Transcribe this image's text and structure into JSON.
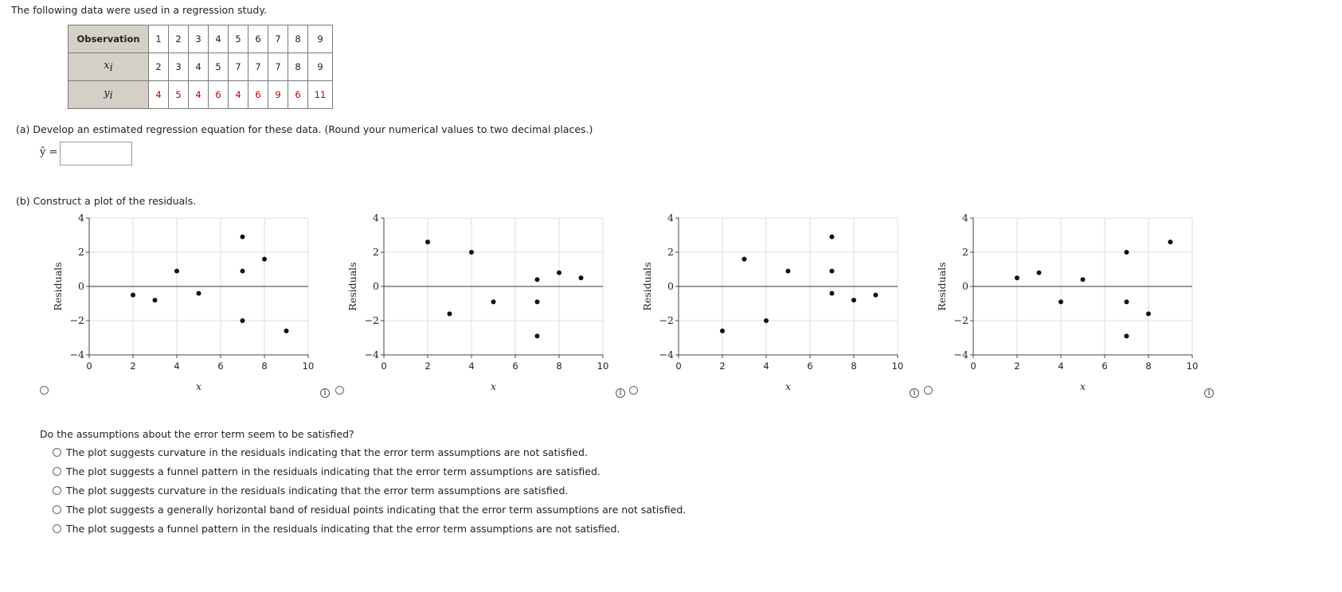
{
  "intro": "The following data were used in a regression study.",
  "table": {
    "header_label": "Observation",
    "x_label": "x",
    "x_sub": "i",
    "y_label": "y",
    "y_sub": "i",
    "observations": [
      "1",
      "2",
      "3",
      "4",
      "5",
      "6",
      "7",
      "8",
      "9"
    ],
    "x": [
      "2",
      "3",
      "4",
      "5",
      "7",
      "7",
      "7",
      "8",
      "9"
    ],
    "y": [
      "4",
      "5",
      "4",
      "6",
      "4",
      "6",
      "9",
      "6",
      "11"
    ]
  },
  "part_a": {
    "text": "(a)  Develop an estimated regression equation for these data. (Round your numerical values to two decimal places.)",
    "yhat_label": "ŷ =",
    "answer_value": ""
  },
  "part_b": {
    "text": "(b)  Construct a plot of the residuals."
  },
  "info_icon_glyph": "i",
  "chart_data": [
    {
      "type": "scatter",
      "xlabel": "x",
      "ylabel": "Residuals",
      "xlim": [
        0,
        10
      ],
      "ylim": [
        -4,
        4
      ],
      "xticks": [
        0,
        2,
        4,
        6,
        8,
        10
      ],
      "yticks": [
        -4,
        -2,
        0,
        2,
        4
      ],
      "tick_labels": {
        "x": [
          "0",
          "2",
          "4",
          "6",
          "8",
          "10"
        ],
        "y": [
          "−4",
          "−2",
          "0",
          "2",
          "4"
        ]
      },
      "grid": true,
      "points": [
        [
          2,
          -0.5
        ],
        [
          3,
          -0.8
        ],
        [
          4,
          0.9
        ],
        [
          5,
          -0.4
        ],
        [
          7,
          2.9
        ],
        [
          7,
          0.9
        ],
        [
          7,
          -2.0
        ],
        [
          8,
          1.6
        ],
        [
          9,
          -2.6
        ]
      ]
    },
    {
      "type": "scatter",
      "xlabel": "x",
      "ylabel": "Residuals",
      "xlim": [
        0,
        10
      ],
      "ylim": [
        -4,
        4
      ],
      "xticks": [
        0,
        2,
        4,
        6,
        8,
        10
      ],
      "yticks": [
        -4,
        -2,
        0,
        2,
        4
      ],
      "tick_labels": {
        "x": [
          "0",
          "2",
          "4",
          "6",
          "8",
          "10"
        ],
        "y": [
          "−4",
          "−2",
          "0",
          "2",
          "4"
        ]
      },
      "grid": true,
      "points": [
        [
          2,
          2.6
        ],
        [
          3,
          -1.6
        ],
        [
          4,
          2.0
        ],
        [
          5,
          -0.9
        ],
        [
          7,
          0.4
        ],
        [
          7,
          -0.9
        ],
        [
          7,
          -2.9
        ],
        [
          8,
          0.8
        ],
        [
          9,
          0.5
        ]
      ]
    },
    {
      "type": "scatter",
      "xlabel": "x",
      "ylabel": "Residuals",
      "xlim": [
        0,
        10
      ],
      "ylim": [
        -4,
        4
      ],
      "xticks": [
        0,
        2,
        4,
        6,
        8,
        10
      ],
      "yticks": [
        -4,
        -2,
        0,
        2,
        4
      ],
      "tick_labels": {
        "x": [
          "0",
          "2",
          "4",
          "6",
          "8",
          "10"
        ],
        "y": [
          "−4",
          "−2",
          "0",
          "2",
          "4"
        ]
      },
      "grid": true,
      "points": [
        [
          2,
          -2.6
        ],
        [
          3,
          1.6
        ],
        [
          4,
          -2.0
        ],
        [
          5,
          0.9
        ],
        [
          7,
          2.9
        ],
        [
          7,
          0.9
        ],
        [
          7,
          -0.4
        ],
        [
          8,
          -0.8
        ],
        [
          9,
          -0.5
        ]
      ]
    },
    {
      "type": "scatter",
      "xlabel": "x",
      "ylabel": "Residuals",
      "xlim": [
        0,
        10
      ],
      "ylim": [
        -4,
        4
      ],
      "xticks": [
        0,
        2,
        4,
        6,
        8,
        10
      ],
      "yticks": [
        -4,
        -2,
        0,
        2,
        4
      ],
      "tick_labels": {
        "x": [
          "0",
          "2",
          "4",
          "6",
          "8",
          "10"
        ],
        "y": [
          "−4",
          "−2",
          "0",
          "2",
          "4"
        ]
      },
      "grid": true,
      "points": [
        [
          2,
          0.5
        ],
        [
          3,
          0.8
        ],
        [
          4,
          -0.9
        ],
        [
          5,
          0.4
        ],
        [
          7,
          2.0
        ],
        [
          7,
          -0.9
        ],
        [
          7,
          -2.9
        ],
        [
          8,
          -1.6
        ],
        [
          9,
          2.6
        ]
      ]
    }
  ],
  "question": {
    "text": "Do the assumptions about the error term seem to be satisfied?",
    "options": [
      "The plot suggests curvature in the residuals indicating that the error term assumptions are not satisfied.",
      "The plot suggests a funnel pattern in the residuals indicating that the error term assumptions are satisfied.",
      "The plot suggests curvature in the residuals indicating that the error term assumptions are satisfied.",
      "The plot suggests a generally horizontal band of residual points indicating that the error term assumptions are not satisfied.",
      "The plot suggests a funnel pattern in the residuals indicating that the error term assumptions are not satisfied."
    ]
  }
}
